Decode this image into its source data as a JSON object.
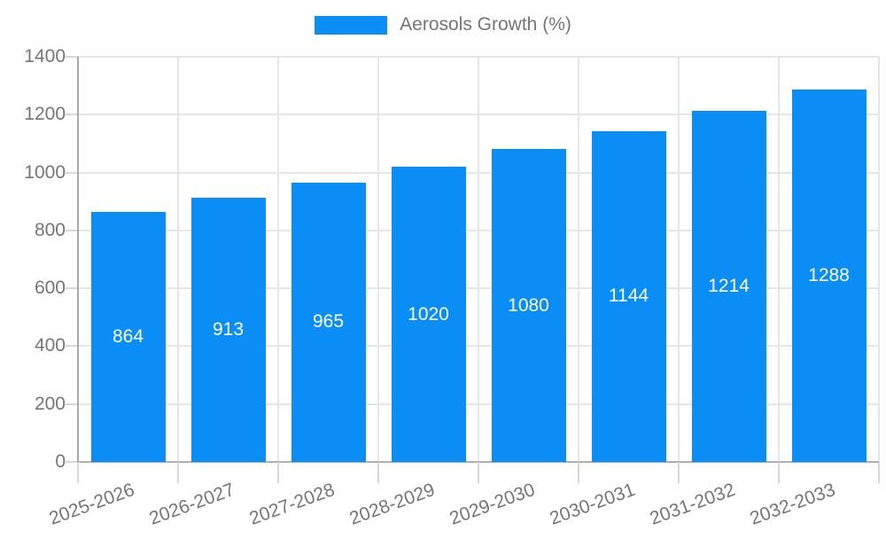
{
  "chart_data": {
    "type": "bar",
    "title": "",
    "legend_label": "Aerosols Growth (%)",
    "legend_position": "top",
    "categories": [
      "2025-2026",
      "2026-2027",
      "2027-2028",
      "2028-2029",
      "2029-2030",
      "2030-2031",
      "2031-2032",
      "2032-2033"
    ],
    "values": [
      864,
      913,
      965,
      1020,
      1080,
      1144,
      1214,
      1288
    ],
    "value_labels": [
      "864",
      "913",
      "965",
      "1020",
      "1080",
      "1144",
      "1214",
      "1288"
    ],
    "xlabel": "",
    "ylabel": "",
    "ylim": [
      0,
      1400
    ],
    "ytick_step": 200,
    "yticks": [
      0,
      200,
      400,
      600,
      800,
      1000,
      1200,
      1400
    ],
    "grid": true,
    "colors": {
      "bar": "#0b8df6",
      "value_label": "#ffffff",
      "axis_text": "#757575",
      "gridline": "#e6e6e6",
      "baseline": "#b0b0b0",
      "axis_line": "#a8a8a8",
      "tick": "#d8d8d8"
    }
  }
}
